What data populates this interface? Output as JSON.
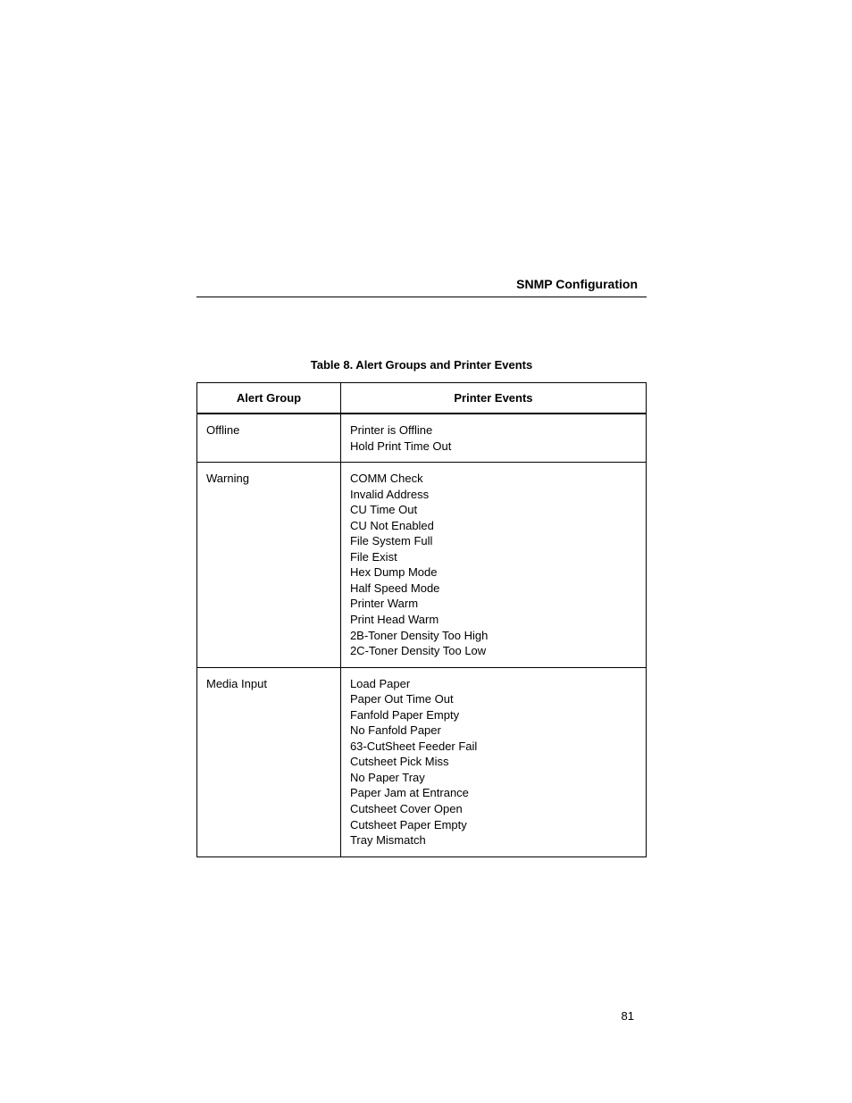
{
  "header": {
    "title": "SNMP Configuration"
  },
  "table": {
    "caption": "Table 8. Alert Groups and Printer Events",
    "columns": [
      "Alert Group",
      "Printer Events"
    ],
    "rows": [
      {
        "group": "Offline",
        "events": [
          "Printer is Offline",
          "Hold Print Time Out"
        ]
      },
      {
        "group": "Warning",
        "events": [
          "COMM Check",
          "Invalid Address",
          "CU Time Out",
          "CU Not Enabled",
          "File System Full",
          "File Exist",
          "Hex Dump Mode",
          "Half Speed Mode",
          "Printer Warm",
          "Print Head Warm",
          "2B-Toner Density Too High",
          "2C-Toner Density Too Low"
        ]
      },
      {
        "group": "Media Input",
        "events": [
          "Load Paper",
          "Paper Out Time Out",
          "Fanfold Paper Empty",
          "No Fanfold Paper",
          "63-CutSheet Feeder Fail",
          "Cutsheet Pick Miss",
          "No Paper Tray",
          "Paper Jam at Entrance",
          "Cutsheet Cover Open",
          "Cutsheet Paper Empty",
          "Tray Mismatch"
        ]
      }
    ]
  },
  "page": {
    "number": "81"
  }
}
